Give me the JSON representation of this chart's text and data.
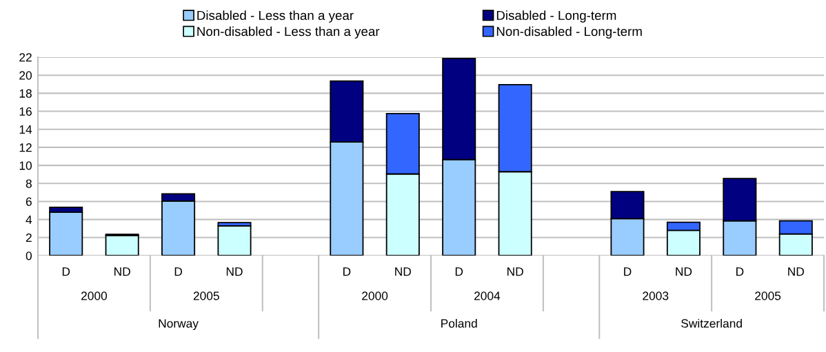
{
  "chart_data": {
    "type": "bar",
    "stacked": true,
    "categories": [
      "D",
      "ND",
      "D",
      "ND",
      null,
      "D",
      "ND",
      "D",
      "ND",
      null,
      "D",
      "ND",
      "D",
      "ND"
    ],
    "series": [
      {
        "name": "Disabled - Less than a year",
        "color": "#99ccff",
        "values": [
          4.8,
          null,
          6.05,
          null,
          null,
          12.6,
          null,
          10.65,
          null,
          null,
          4.1,
          null,
          3.85,
          null
        ]
      },
      {
        "name": "Non-disabled - Less than a year",
        "color": "#ccffff",
        "values": [
          null,
          2.2,
          null,
          3.3,
          null,
          null,
          9.05,
          null,
          9.3,
          null,
          null,
          2.8,
          null,
          2.4
        ]
      },
      {
        "name": "Disabled - Long-term",
        "color": "#000080",
        "values": [
          0.55,
          null,
          0.8,
          null,
          null,
          6.75,
          null,
          11.2,
          null,
          null,
          3.0,
          null,
          4.7,
          null
        ]
      },
      {
        "name": "Non-disabled - Long-term",
        "color": "#3366ff",
        "values": [
          null,
          0.15,
          null,
          0.35,
          null,
          null,
          6.7,
          null,
          9.65,
          null,
          null,
          0.9,
          null,
          1.45
        ]
      }
    ],
    "annotations": [
      "2000",
      "2005",
      "2000",
      "2004",
      "2003",
      "2005",
      "Norway",
      "Poland",
      "Switzerland"
    ],
    "ylim": [
      0,
      22
    ],
    "yticks": [
      0,
      2,
      4,
      6,
      8,
      10,
      12,
      14,
      16,
      18,
      20,
      22
    ],
    "grid": "y",
    "legend": "top"
  }
}
